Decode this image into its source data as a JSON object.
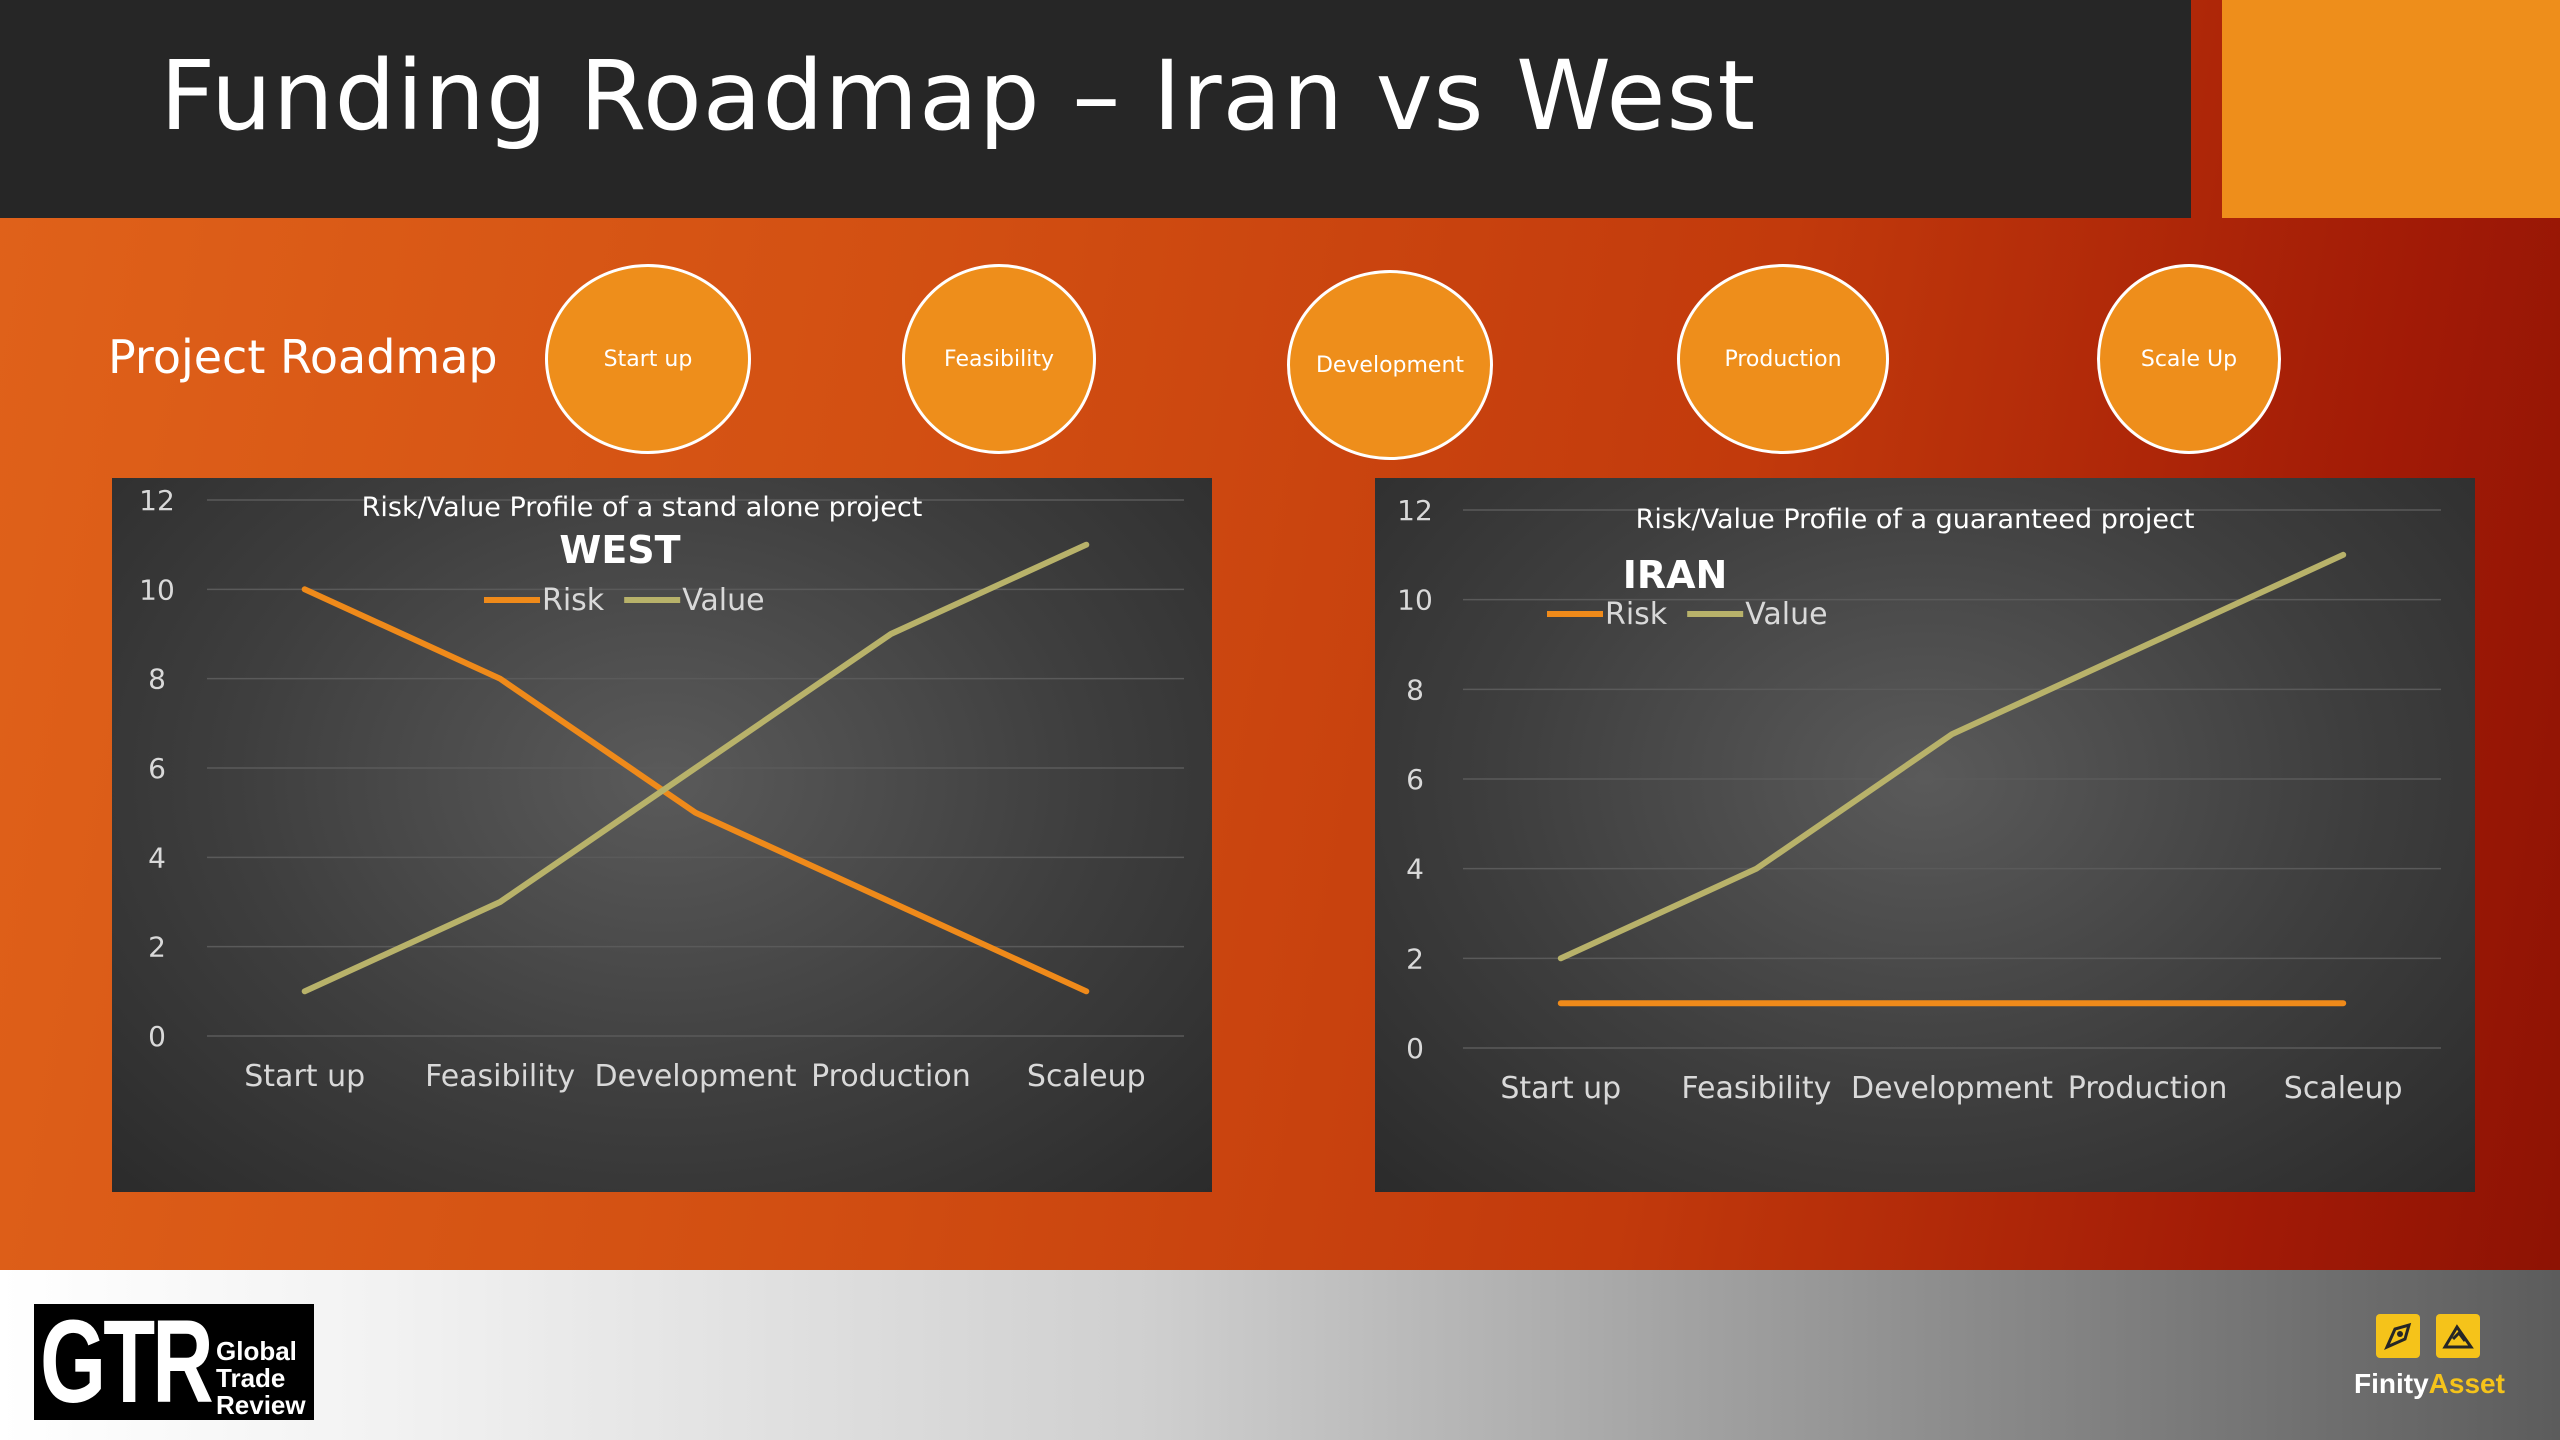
{
  "header": {
    "title": "Funding Roadmap – Iran vs West"
  },
  "roadmap": {
    "label": "Project Roadmap",
    "stages": [
      "Start up",
      "Feasibility",
      "Development",
      "Production",
      "Scale Up"
    ]
  },
  "colors": {
    "accent": "#ee8e1b",
    "risk": "#ef8a1a",
    "value": "#b8b26a",
    "panel": "#3a3a3a"
  },
  "chart_data": [
    {
      "type": "line",
      "title": "Risk/Value Profile of a stand alone project",
      "subtitle": "WEST",
      "categories": [
        "Start up",
        "Feasibility",
        "Development",
        "Production",
        "Scaleup"
      ],
      "series": [
        {
          "name": "Risk",
          "values": [
            10,
            8,
            5,
            3,
            1
          ]
        },
        {
          "name": "Value",
          "values": [
            1,
            3,
            6,
            9,
            11
          ]
        }
      ],
      "yticks": [
        0,
        2,
        4,
        6,
        8,
        10,
        12
      ],
      "ylim": [
        0,
        12
      ],
      "grid": true,
      "legend": "top-center"
    },
    {
      "type": "line",
      "title": "Risk/Value Profile of a guaranteed project",
      "subtitle": "IRAN",
      "categories": [
        "Start up",
        "Feasibility",
        "Development",
        "Production",
        "Scaleup"
      ],
      "series": [
        {
          "name": "Risk",
          "values": [
            1,
            1,
            1,
            1,
            1
          ]
        },
        {
          "name": "Value",
          "values": [
            2,
            4,
            7,
            9,
            11
          ]
        }
      ],
      "yticks": [
        0,
        2,
        4,
        6,
        8,
        10,
        12
      ],
      "ylim": [
        0,
        12
      ],
      "grid": true,
      "legend": "top-left"
    }
  ],
  "footer": {
    "gtr_mark": "GTR",
    "gtr_lines": [
      "Global",
      "Trade",
      "Review"
    ],
    "brand_a": "Finity",
    "brand_b": "Asset"
  }
}
